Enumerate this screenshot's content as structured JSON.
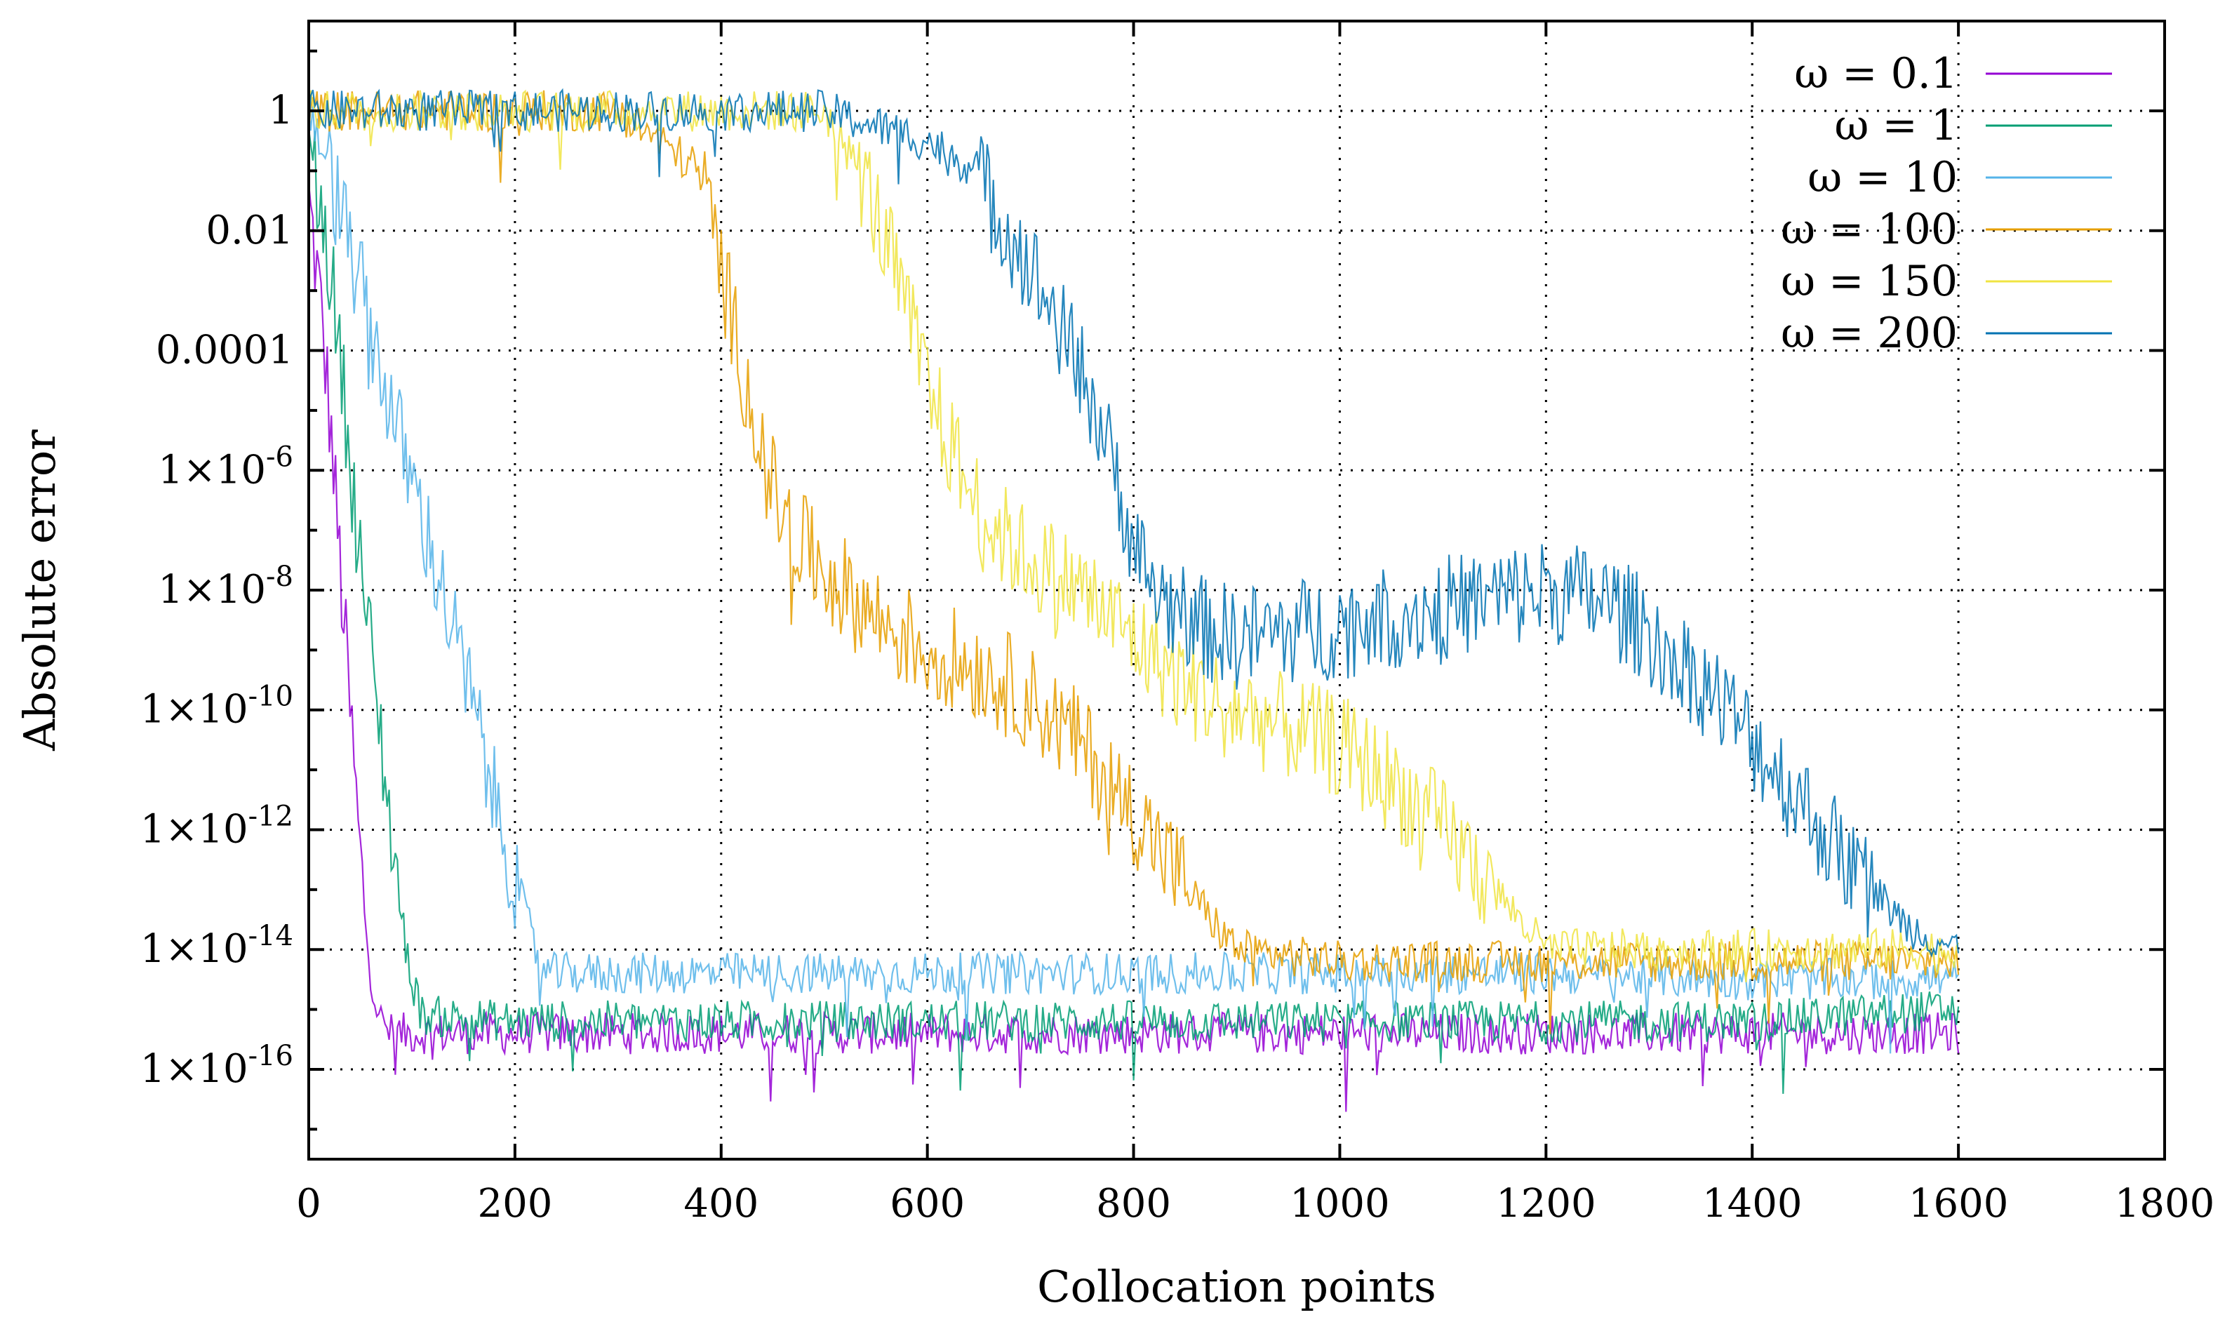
{
  "chart_data": {
    "type": "line",
    "title": "",
    "xlabel": "Collocation points",
    "ylabel": "Absolute error",
    "xlim": [
      0,
      1800
    ],
    "ylim_log10": [
      -17.5,
      1.5
    ],
    "yscale": "log",
    "grid": true,
    "legend_position": "top-right",
    "x_ticks": [
      0,
      200,
      400,
      600,
      800,
      1000,
      1200,
      1400,
      1600,
      1800
    ],
    "y_ticks": [
      {
        "exp": 0,
        "mantissa": "1",
        "sup": ""
      },
      {
        "exp": -2,
        "mantissa": "0.01",
        "sup": ""
      },
      {
        "exp": -4,
        "mantissa": "0.0001",
        "sup": ""
      },
      {
        "exp": -6,
        "mantissa": "1×10",
        "sup": "-6"
      },
      {
        "exp": -8,
        "mantissa": "1×10",
        "sup": "-8"
      },
      {
        "exp": -10,
        "mantissa": "1×10",
        "sup": "-10"
      },
      {
        "exp": -12,
        "mantissa": "1×10",
        "sup": "-12"
      },
      {
        "exp": -14,
        "mantissa": "1×10",
        "sup": "-14"
      },
      {
        "exp": -16,
        "mantissa": "1×10",
        "sup": "-16"
      }
    ],
    "series": [
      {
        "name": "ω = 0.1",
        "color": "#9400d3",
        "x": [
          0,
          10,
          20,
          30,
          40,
          50,
          60,
          70,
          80,
          100,
          200,
          400,
          600,
          800,
          1000,
          1200,
          1400,
          1600
        ],
        "log10_error": [
          -1.5,
          -3,
          -5,
          -7.5,
          -10,
          -12.5,
          -14.5,
          -15.2,
          -15.4,
          -15.4,
          -15.4,
          -15.4,
          -15.4,
          -15.4,
          -15.4,
          -15.4,
          -15.4,
          -15.4
        ]
      },
      {
        "name": "ω = 1",
        "color": "#009e73",
        "x": [
          0,
          10,
          20,
          30,
          40,
          50,
          60,
          70,
          80,
          90,
          100,
          110,
          200,
          400,
          600,
          800,
          1000,
          1200,
          1400,
          1600
        ],
        "log10_error": [
          -0.5,
          -1.5,
          -2.5,
          -4,
          -5.8,
          -7.5,
          -9,
          -10.5,
          -12,
          -13.5,
          -14.5,
          -15.1,
          -15.2,
          -15.2,
          -15.2,
          -15.2,
          -15.2,
          -15.2,
          -15.2,
          -15.0
        ]
      },
      {
        "name": "ω = 10",
        "color": "#56b4e9",
        "x": [
          0,
          20,
          40,
          60,
          80,
          100,
          120,
          140,
          160,
          180,
          200,
          220,
          230,
          400,
          600,
          800,
          1000,
          1200,
          1400,
          1600
        ],
        "log10_error": [
          0,
          -1,
          -2.3,
          -3.6,
          -5,
          -6.2,
          -7.4,
          -8.7,
          -10,
          -11.5,
          -12.8,
          -14,
          -14.4,
          -14.4,
          -14.4,
          -14.4,
          -14.4,
          -14.4,
          -14.5,
          -14.5
        ]
      },
      {
        "name": "ω = 100",
        "color": "#e69f00",
        "x": [
          0,
          100,
          200,
          300,
          380,
          400,
          420,
          440,
          460,
          480,
          520,
          560,
          600,
          650,
          700,
          750,
          800,
          850,
          880,
          900,
          1000,
          1200,
          1400,
          1600
        ],
        "log10_error": [
          0,
          0,
          0,
          0,
          -1,
          -2.6,
          -4.2,
          -5.8,
          -6.8,
          -7.3,
          -8,
          -8.6,
          -9,
          -9.3,
          -9.8,
          -10.6,
          -11.7,
          -12.9,
          -13.6,
          -14,
          -14.2,
          -14.2,
          -14.2,
          -14.2
        ]
      },
      {
        "name": "ω = 150",
        "color": "#f0e442",
        "x": [
          0,
          100,
          200,
          300,
          400,
          500,
          540,
          560,
          580,
          600,
          620,
          640,
          660,
          700,
          750,
          800,
          850,
          900,
          950,
          1000,
          1050,
          1100,
          1150,
          1200,
          1400,
          1600
        ],
        "log10_error": [
          0,
          0,
          0,
          0,
          0,
          0,
          -1.2,
          -2.2,
          -3.4,
          -4.6,
          -5.5,
          -6.3,
          -6.9,
          -7.5,
          -8,
          -8.8,
          -9.6,
          -10,
          -10.3,
          -10.6,
          -11.2,
          -12,
          -13,
          -14,
          -14,
          -14
        ]
      },
      {
        "name": "ω = 200",
        "color": "#0072b2",
        "x": [
          0,
          100,
          200,
          300,
          400,
          500,
          600,
          640,
          680,
          720,
          760,
          790,
          800,
          820,
          860,
          900,
          1000,
          1100,
          1200,
          1260,
          1300,
          1350,
          1400,
          1450,
          1500,
          1550,
          1600
        ],
        "log10_error": [
          0,
          0,
          0,
          0,
          0,
          0,
          -0.5,
          -0.9,
          -2,
          -3.3,
          -4.8,
          -6.5,
          -7.3,
          -8,
          -8.6,
          -8.8,
          -8.6,
          -8.3,
          -8,
          -8.2,
          -8.7,
          -9.5,
          -10.5,
          -11.6,
          -12.7,
          -13.6,
          -14
        ]
      }
    ]
  }
}
